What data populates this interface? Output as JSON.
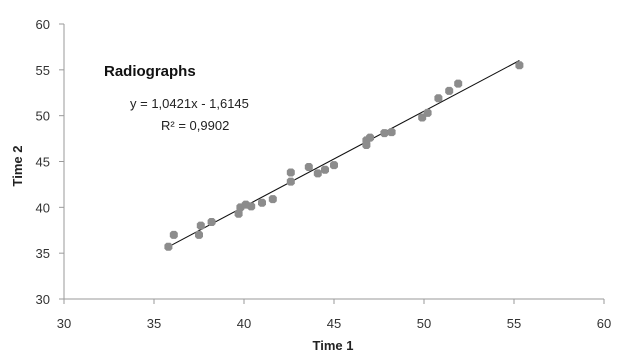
{
  "chart_data": {
    "type": "scatter",
    "title": "Radiographs",
    "xlabel": "Time 1",
    "ylabel": "Time 2",
    "xlim": [
      30,
      60
    ],
    "ylim": [
      30,
      60
    ],
    "xticks": [
      "30",
      "35",
      "40",
      "45",
      "50",
      "55",
      "60"
    ],
    "yticks": [
      "30",
      "35",
      "40",
      "45",
      "50",
      "55",
      "60"
    ],
    "grid": false,
    "marker_color": "#8c8c8c",
    "trendline_color": "#111111",
    "trendline": {
      "slope": 1.0421,
      "intercept": -1.6145,
      "x_range": [
        35.8,
        55.3
      ],
      "equation": "y = 1,0421x - 1,6145",
      "r_squared": "R² = 0,9902"
    },
    "series": [
      {
        "points": [
          [
            35.8,
            35.7
          ],
          [
            36.1,
            37.0
          ],
          [
            37.5,
            37.0
          ],
          [
            37.6,
            38.0
          ],
          [
            38.2,
            38.4
          ],
          [
            39.7,
            39.3
          ],
          [
            39.8,
            40.0
          ],
          [
            40.1,
            40.3
          ],
          [
            40.4,
            40.1
          ],
          [
            41.0,
            40.5
          ],
          [
            41.6,
            40.9
          ],
          [
            42.6,
            42.8
          ],
          [
            42.6,
            43.8
          ],
          [
            43.6,
            44.4
          ],
          [
            44.1,
            43.7
          ],
          [
            44.5,
            44.1
          ],
          [
            45.0,
            44.6
          ],
          [
            46.8,
            46.8
          ],
          [
            46.8,
            47.3
          ],
          [
            47.0,
            47.6
          ],
          [
            47.8,
            48.1
          ],
          [
            48.2,
            48.2
          ],
          [
            49.9,
            49.8
          ],
          [
            50.2,
            50.3
          ],
          [
            50.8,
            51.9
          ],
          [
            51.4,
            52.7
          ],
          [
            51.9,
            53.5
          ],
          [
            55.3,
            55.5
          ]
        ]
      }
    ]
  }
}
